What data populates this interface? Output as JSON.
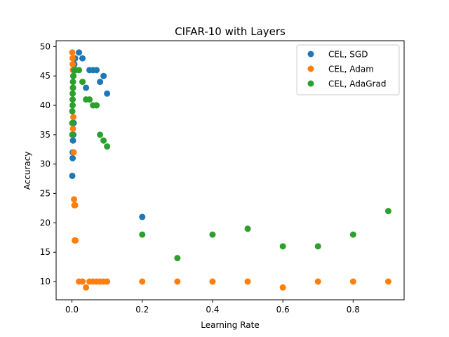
{
  "chart_data": {
    "type": "scatter",
    "title": "CIFAR-10 with Layers",
    "xlabel": "Learning Rate",
    "ylabel": "Accuracy",
    "xlim": [
      -0.045,
      0.945
    ],
    "ylim": [
      6.9,
      51.0
    ],
    "xticks": [
      0.0,
      0.2,
      0.4,
      0.6,
      0.8
    ],
    "xtick_labels": [
      "0.0",
      "0.2",
      "0.4",
      "0.6",
      "0.8"
    ],
    "yticks": [
      10,
      15,
      20,
      25,
      30,
      35,
      40,
      45,
      50
    ],
    "ytick_labels": [
      "10",
      "15",
      "20",
      "25",
      "30",
      "35",
      "40",
      "45",
      "50"
    ],
    "grid": false,
    "legend_position": "top-right",
    "series": [
      {
        "name": "CEL, SGD",
        "color": "#1f77b4",
        "points": [
          [
            0.001,
            28
          ],
          [
            0.002,
            31
          ],
          [
            0.002,
            32
          ],
          [
            0.003,
            34
          ],
          [
            0.004,
            35
          ],
          [
            0.005,
            37
          ],
          [
            0.003,
            43
          ],
          [
            0.004,
            45
          ],
          [
            0.005,
            46
          ],
          [
            0.007,
            47
          ],
          [
            0.009,
            48
          ],
          [
            0.02,
            49
          ],
          [
            0.03,
            48
          ],
          [
            0.04,
            43
          ],
          [
            0.05,
            46
          ],
          [
            0.06,
            46
          ],
          [
            0.07,
            46
          ],
          [
            0.08,
            44
          ],
          [
            0.09,
            45
          ],
          [
            0.1,
            42
          ],
          [
            0.2,
            21
          ]
        ]
      },
      {
        "name": "CEL, Adam",
        "color": "#ff7f0e",
        "points": [
          [
            0.001,
            49
          ],
          [
            0.002,
            48
          ],
          [
            0.002,
            47
          ],
          [
            0.003,
            46
          ],
          [
            0.003,
            36
          ],
          [
            0.004,
            38
          ],
          [
            0.005,
            32
          ],
          [
            0.006,
            24
          ],
          [
            0.007,
            23
          ],
          [
            0.008,
            17
          ],
          [
            0.009,
            23
          ],
          [
            0.01,
            17
          ],
          [
            0.02,
            10
          ],
          [
            0.03,
            10
          ],
          [
            0.04,
            9
          ],
          [
            0.05,
            10
          ],
          [
            0.06,
            10
          ],
          [
            0.07,
            10
          ],
          [
            0.08,
            10
          ],
          [
            0.09,
            10
          ],
          [
            0.1,
            10
          ],
          [
            0.2,
            10
          ],
          [
            0.3,
            10
          ],
          [
            0.4,
            10
          ],
          [
            0.5,
            10
          ],
          [
            0.6,
            9
          ],
          [
            0.7,
            10
          ],
          [
            0.8,
            10
          ],
          [
            0.9,
            10
          ]
        ]
      },
      {
        "name": "CEL, AdaGrad",
        "color": "#2ca02c",
        "points": [
          [
            0.001,
            35
          ],
          [
            0.001,
            37
          ],
          [
            0.001,
            39
          ],
          [
            0.002,
            40
          ],
          [
            0.002,
            41
          ],
          [
            0.002,
            42
          ],
          [
            0.003,
            43
          ],
          [
            0.003,
            44
          ],
          [
            0.004,
            45
          ],
          [
            0.006,
            46
          ],
          [
            0.008,
            46
          ],
          [
            0.01,
            46
          ],
          [
            0.02,
            46
          ],
          [
            0.03,
            44
          ],
          [
            0.04,
            41
          ],
          [
            0.05,
            41
          ],
          [
            0.06,
            40
          ],
          [
            0.07,
            40
          ],
          [
            0.08,
            35
          ],
          [
            0.09,
            34
          ],
          [
            0.1,
            33
          ],
          [
            0.2,
            18
          ],
          [
            0.3,
            14
          ],
          [
            0.4,
            18
          ],
          [
            0.5,
            19
          ],
          [
            0.6,
            16
          ],
          [
            0.7,
            16
          ],
          [
            0.8,
            18
          ],
          [
            0.9,
            22
          ]
        ]
      }
    ]
  }
}
